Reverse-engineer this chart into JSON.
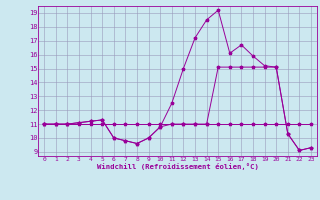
{
  "xlabel": "Windchill (Refroidissement éolien,°C)",
  "bg_color": "#cce8f0",
  "grid_color": "#9999bb",
  "line_color": "#990099",
  "xlim": [
    -0.5,
    23.5
  ],
  "ylim": [
    8.7,
    19.5
  ],
  "xticks": [
    0,
    1,
    2,
    3,
    4,
    5,
    6,
    7,
    8,
    9,
    10,
    11,
    12,
    13,
    14,
    15,
    16,
    17,
    18,
    19,
    20,
    21,
    22,
    23
  ],
  "yticks": [
    9,
    10,
    11,
    12,
    13,
    14,
    15,
    16,
    17,
    18,
    19
  ],
  "series1_x": [
    0,
    1,
    2,
    3,
    4,
    5,
    6,
    7,
    8,
    9,
    10,
    11,
    12,
    13,
    14,
    15,
    16,
    17,
    18,
    19,
    20,
    21,
    22,
    23
  ],
  "series1_y": [
    11,
    11,
    11,
    11,
    11,
    11,
    11,
    11,
    11,
    11,
    11,
    11,
    11,
    11,
    11,
    11,
    11,
    11,
    11,
    11,
    11,
    11,
    11,
    11
  ],
  "series2_x": [
    0,
    1,
    2,
    3,
    4,
    5,
    6,
    7,
    8,
    9,
    10,
    11,
    12,
    13,
    14,
    15,
    16,
    17,
    18,
    19,
    20,
    21,
    22,
    23
  ],
  "series2_y": [
    11,
    11,
    11,
    11.1,
    11.2,
    11.3,
    10.0,
    9.8,
    9.6,
    10.0,
    10.8,
    12.5,
    15.0,
    17.2,
    18.5,
    19.2,
    16.1,
    16.7,
    15.9,
    15.2,
    15.1,
    10.3,
    9.1,
    9.3
  ],
  "series3_x": [
    0,
    1,
    2,
    3,
    4,
    5,
    6,
    7,
    8,
    9,
    10,
    11,
    12,
    13,
    14,
    15,
    16,
    17,
    18,
    19,
    20,
    21,
    22,
    23
  ],
  "series3_y": [
    11,
    11,
    11,
    11.1,
    11.2,
    11.3,
    10.0,
    9.8,
    9.6,
    10.0,
    10.8,
    11.0,
    11.0,
    11.0,
    11.0,
    15.1,
    15.1,
    15.1,
    15.1,
    15.1,
    15.1,
    10.3,
    9.1,
    9.3
  ]
}
